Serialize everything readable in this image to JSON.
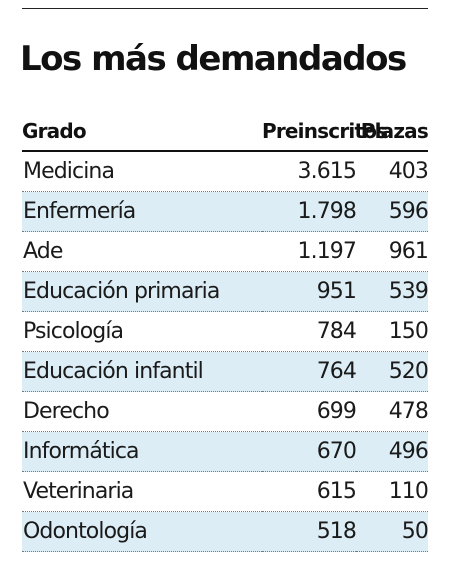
{
  "chart_data": {
    "type": "table",
    "title": "Los más demandados",
    "columns": [
      "Grado",
      "Preinscritos",
      "Plazas"
    ],
    "rows": [
      {
        "grado": "Medicina",
        "preinscritos": "3.615",
        "plazas": "403"
      },
      {
        "grado": "Enfermería",
        "preinscritos": "1.798",
        "plazas": "596"
      },
      {
        "grado": "Ade",
        "preinscritos": "1.197",
        "plazas": "961"
      },
      {
        "grado": "Educación primaria",
        "preinscritos": "951",
        "plazas": "539"
      },
      {
        "grado": "Psicología",
        "preinscritos": "784",
        "plazas": "150"
      },
      {
        "grado": "Educación infantil",
        "preinscritos": "764",
        "plazas": "520"
      },
      {
        "grado": "Derecho",
        "preinscritos": "699",
        "plazas": "478"
      },
      {
        "grado": "Informática",
        "preinscritos": "670",
        "plazas": "496"
      },
      {
        "grado": "Veterinaria",
        "preinscritos": "615",
        "plazas": "110"
      },
      {
        "grado": "Odontología",
        "preinscritos": "518",
        "plazas": "50"
      }
    ]
  },
  "colors": {
    "stripe": "#dcedf6",
    "text": "#1a1a1a",
    "rule": "#111111"
  }
}
